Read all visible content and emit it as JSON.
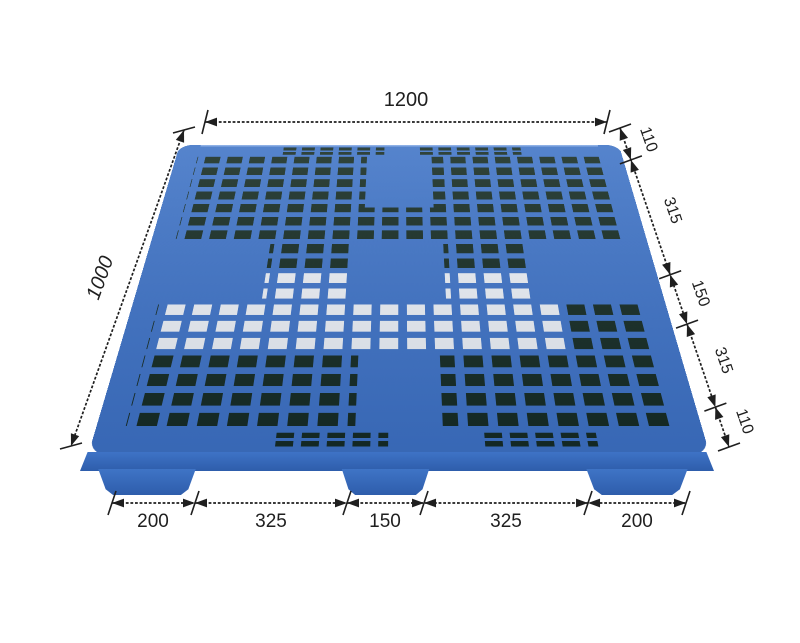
{
  "figure": {
    "subject": "blue plastic pallet with overall and pitch dimensions"
  },
  "dimensions": {
    "top": {
      "label": "1200"
    },
    "left": {
      "label": "1000"
    },
    "right": {
      "labels": [
        "110",
        "315",
        "150",
        "315",
        "110"
      ]
    },
    "bottom": {
      "labels": [
        "200",
        "325",
        "150",
        "325",
        "200"
      ]
    }
  },
  "colors": {
    "pallet_blue": "#3e73c6",
    "pallet_blue_dark": "#2e5dab",
    "hole_dark": "#142a20",
    "dimension_line": "#1f1f1f",
    "background": "#ffffff"
  }
}
